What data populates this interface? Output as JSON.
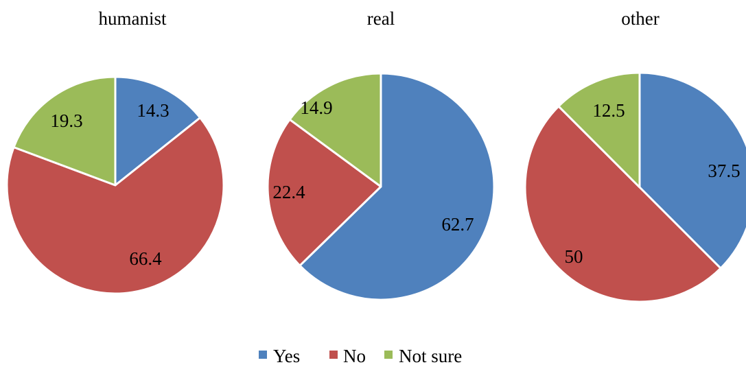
{
  "legend": {
    "items": [
      {
        "label": "Yes",
        "color": "#4F81BD"
      },
      {
        "label": "No",
        "color": "#C0504D"
      },
      {
        "label": "Not sure",
        "color": "#9BBB59"
      }
    ],
    "position": "bottom"
  },
  "chart_data": [
    {
      "type": "pie",
      "title": "humanist",
      "categories": [
        "Yes",
        "No",
        "Not sure"
      ],
      "values": [
        14.3,
        66.4,
        19.3
      ],
      "colors": [
        "#4F81BD",
        "#C0504D",
        "#9BBB59"
      ]
    },
    {
      "type": "pie",
      "title": "real",
      "categories": [
        "Yes",
        "No",
        "Not sure"
      ],
      "values": [
        62.7,
        22.4,
        14.9
      ],
      "colors": [
        "#4F81BD",
        "#C0504D",
        "#9BBB59"
      ]
    },
    {
      "type": "pie",
      "title": "other",
      "categories": [
        "Yes",
        "No",
        "Not sure"
      ],
      "values": [
        37.5,
        50,
        12.5
      ],
      "colors": [
        "#4F81BD",
        "#C0504D",
        "#9BBB59"
      ]
    }
  ]
}
